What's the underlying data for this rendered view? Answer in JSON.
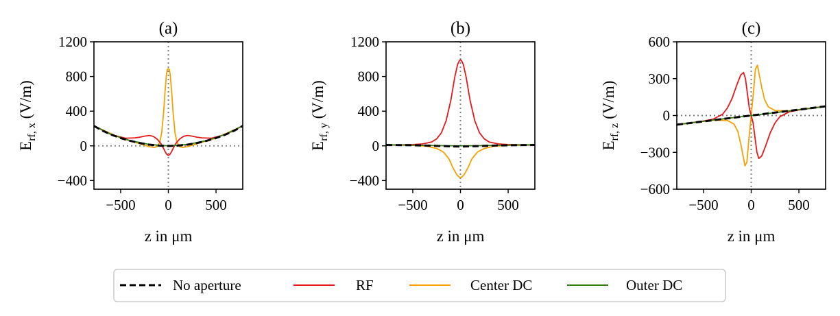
{
  "legend": {
    "entries": [
      {
        "label": "No aperture",
        "color": "#000000",
        "dash": true
      },
      {
        "label": "RF",
        "color": "#e4191b"
      },
      {
        "label": "Center DC",
        "color": "#f5a100"
      },
      {
        "label": "Outer DC",
        "color": "#2e7d0e"
      }
    ]
  },
  "chart_data": [
    {
      "type": "line",
      "title": "(a)",
      "xlabel": "z in μm",
      "ylabel": "E",
      "ylabel_sub": "rf, x",
      "ylabel_unit": " (V/m)",
      "xlim": [
        -780,
        780
      ],
      "ylim": [
        -500,
        1200
      ],
      "xticks": [
        -500,
        0,
        500
      ],
      "xticklabels": [
        "−500",
        "0",
        "500"
      ],
      "yticks": [
        -400,
        0,
        400,
        800,
        1200
      ],
      "yticklabels": [
        "−400",
        "0",
        "400",
        "800",
        "1200"
      ],
      "vline": 0,
      "hline": 0,
      "series": [
        {
          "name": "No aperture",
          "x": [
            -780,
            -700,
            -600,
            -500,
            -400,
            -300,
            -200,
            -100,
            0,
            100,
            200,
            300,
            400,
            500,
            600,
            700,
            780
          ],
          "y": [
            230,
            180,
            130,
            90,
            58,
            32,
            14,
            3,
            -2,
            3,
            14,
            32,
            58,
            90,
            130,
            180,
            230
          ]
        },
        {
          "name": "RF",
          "x": [
            -780,
            -600,
            -450,
            -350,
            -300,
            -250,
            -200,
            -160,
            -120,
            -80,
            -50,
            -30,
            -15,
            0,
            15,
            30,
            50,
            80,
            120,
            160,
            200,
            250,
            300,
            350,
            450,
            600,
            780
          ],
          "y": [
            230,
            130,
            88,
            92,
            100,
            112,
            120,
            110,
            80,
            30,
            -30,
            -75,
            -100,
            -110,
            -100,
            -75,
            -30,
            30,
            80,
            110,
            120,
            112,
            100,
            92,
            88,
            130,
            230
          ]
        },
        {
          "name": "Center DC",
          "x": [
            -780,
            -500,
            -300,
            -200,
            -150,
            -120,
            -90,
            -70,
            -50,
            -35,
            -20,
            -10,
            0,
            10,
            20,
            35,
            50,
            70,
            90,
            120,
            150,
            200,
            300,
            500,
            780
          ],
          "y": [
            230,
            90,
            25,
            -10,
            -18,
            -10,
            40,
            150,
            380,
            620,
            820,
            880,
            890,
            880,
            820,
            620,
            380,
            150,
            40,
            -10,
            -18,
            -10,
            25,
            90,
            230
          ]
        },
        {
          "name": "Outer DC",
          "x": [
            -780,
            -600,
            -400,
            -200,
            0,
            200,
            400,
            600,
            780
          ],
          "y": [
            232,
            132,
            60,
            16,
            0,
            16,
            60,
            132,
            232
          ]
        }
      ]
    },
    {
      "type": "line",
      "title": "(b)",
      "xlabel": "z in μm",
      "ylabel": "E",
      "ylabel_sub": "rf, y",
      "ylabel_unit": " (V/m)",
      "xlim": [
        -780,
        780
      ],
      "ylim": [
        -500,
        1200
      ],
      "xticks": [
        -500,
        0,
        500
      ],
      "xticklabels": [
        "−500",
        "0",
        "500"
      ],
      "yticks": [
        -400,
        0,
        400,
        800,
        1200
      ],
      "yticklabels": [
        "−400",
        "0",
        "400",
        "800",
        "1200"
      ],
      "vline": 0,
      "hline": null,
      "series": [
        {
          "name": "No aperture",
          "x": [
            -780,
            -600,
            -400,
            -200,
            -100,
            0,
            100,
            200,
            400,
            600,
            780
          ],
          "y": [
            10,
            8,
            5,
            -2,
            -6,
            -8,
            -6,
            -2,
            5,
            8,
            10
          ]
        },
        {
          "name": "RF",
          "x": [
            -780,
            -600,
            -500,
            -400,
            -300,
            -250,
            -200,
            -150,
            -100,
            -60,
            -30,
            -10,
            0,
            10,
            30,
            60,
            100,
            150,
            200,
            250,
            300,
            400,
            500,
            600,
            780
          ],
          "y": [
            8,
            12,
            15,
            22,
            45,
            80,
            150,
            290,
            530,
            790,
            940,
            985,
            990,
            985,
            940,
            790,
            530,
            290,
            150,
            80,
            45,
            22,
            15,
            12,
            8
          ]
        },
        {
          "name": "Center DC",
          "x": [
            -780,
            -500,
            -350,
            -250,
            -180,
            -120,
            -80,
            -40,
            -15,
            0,
            15,
            40,
            80,
            120,
            180,
            250,
            350,
            500,
            780
          ],
          "y": [
            10,
            5,
            -5,
            -30,
            -70,
            -150,
            -250,
            -330,
            -360,
            -365,
            -360,
            -330,
            -250,
            -150,
            -70,
            -30,
            -5,
            5,
            10
          ]
        },
        {
          "name": "Outer DC",
          "x": [
            -780,
            -600,
            -400,
            -200,
            0,
            200,
            400,
            600,
            780
          ],
          "y": [
            12,
            10,
            6,
            2,
            0,
            2,
            6,
            10,
            12
          ]
        }
      ]
    },
    {
      "type": "line",
      "title": "(c)",
      "xlabel": "z in μm",
      "ylabel": "E",
      "ylabel_sub": "rf, z",
      "ylabel_unit": " (V/m)",
      "xlim": [
        -780,
        780
      ],
      "ylim": [
        -600,
        600
      ],
      "xticks": [
        -500,
        0,
        500
      ],
      "xticklabels": [
        "−500",
        "0",
        "500"
      ],
      "yticks": [
        -600,
        -300,
        0,
        300,
        600
      ],
      "yticklabels": [
        "−600",
        "−300",
        "0",
        "300",
        "600"
      ],
      "vline": 0,
      "hline": 0,
      "series": [
        {
          "name": "No aperture",
          "x": [
            -780,
            -400,
            0,
            400,
            780
          ],
          "y": [
            -75,
            -38,
            0,
            38,
            75
          ]
        },
        {
          "name": "RF",
          "x": [
            -780,
            -500,
            -400,
            -300,
            -250,
            -200,
            -150,
            -110,
            -80,
            -60,
            -40,
            -20,
            0,
            20,
            40,
            60,
            80,
            110,
            150,
            200,
            250,
            300,
            400,
            500,
            780
          ],
          "y": [
            -75,
            -45,
            -30,
            10,
            60,
            140,
            250,
            330,
            350,
            300,
            180,
            60,
            0,
            -60,
            -180,
            -300,
            -350,
            -330,
            -250,
            -140,
            -60,
            -10,
            30,
            45,
            75
          ]
        },
        {
          "name": "Center DC",
          "x": [
            -780,
            -400,
            -250,
            -180,
            -140,
            -110,
            -85,
            -65,
            -45,
            -25,
            0,
            25,
            45,
            65,
            85,
            110,
            140,
            180,
            250,
            400,
            780
          ],
          "y": [
            -75,
            -38,
            -40,
            -70,
            -130,
            -230,
            -330,
            -410,
            -380,
            -200,
            0,
            200,
            380,
            410,
            330,
            230,
            130,
            70,
            40,
            38,
            75
          ]
        },
        {
          "name": "Outer DC",
          "x": [
            -780,
            -400,
            0,
            400,
            780
          ],
          "y": [
            -74,
            -37,
            0,
            37,
            74
          ]
        }
      ]
    }
  ]
}
